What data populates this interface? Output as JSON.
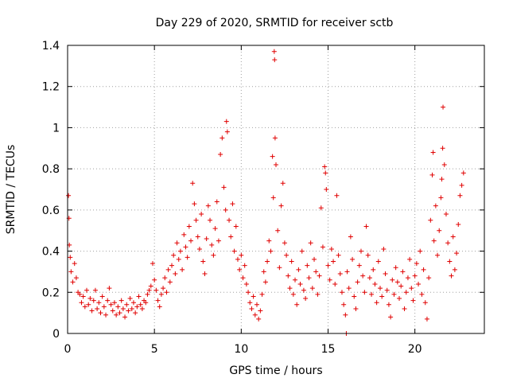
{
  "chart_data": {
    "type": "scatter",
    "title": "Day 229 of 2020, SRMTID for receiver sctb",
    "xlabel": "GPS time / hours",
    "ylabel": "SRMTID / TECUs",
    "xlim": [
      0,
      24
    ],
    "ylim": [
      0,
      1.4
    ],
    "xticks": [
      0,
      5,
      10,
      15,
      20
    ],
    "xtick_labels": [
      "0",
      "5",
      "10",
      "15",
      "20"
    ],
    "yticks": [
      0,
      0.2,
      0.4,
      0.6,
      0.8,
      1,
      1.2,
      1.4
    ],
    "ytick_labels": [
      "0",
      "0.2",
      "0.4",
      "0.6",
      "0.8",
      "1",
      "1.2",
      "1.4"
    ],
    "grid": true,
    "marker": "+",
    "color": "#e00000",
    "series": [
      {
        "name": "SRMTID",
        "points": [
          [
            0.05,
            0.67
          ],
          [
            0.08,
            0.56
          ],
          [
            0.1,
            0.43
          ],
          [
            0.15,
            0.37
          ],
          [
            0.2,
            0.3
          ],
          [
            0.3,
            0.25
          ],
          [
            0.4,
            0.34
          ],
          [
            0.5,
            0.27
          ],
          [
            0.6,
            0.2
          ],
          [
            0.7,
            0.19
          ],
          [
            0.8,
            0.15
          ],
          [
            0.9,
            0.18
          ],
          [
            1.0,
            0.13
          ],
          [
            1.1,
            0.21
          ],
          [
            1.2,
            0.14
          ],
          [
            1.3,
            0.17
          ],
          [
            1.4,
            0.11
          ],
          [
            1.5,
            0.16
          ],
          [
            1.6,
            0.21
          ],
          [
            1.7,
            0.12
          ],
          [
            1.8,
            0.15
          ],
          [
            1.9,
            0.1
          ],
          [
            2.0,
            0.18
          ],
          [
            2.1,
            0.13
          ],
          [
            2.2,
            0.09
          ],
          [
            2.3,
            0.16
          ],
          [
            2.4,
            0.22
          ],
          [
            2.5,
            0.14
          ],
          [
            2.6,
            0.11
          ],
          [
            2.7,
            0.15
          ],
          [
            2.8,
            0.09
          ],
          [
            2.9,
            0.13
          ],
          [
            3.0,
            0.1
          ],
          [
            3.1,
            0.16
          ],
          [
            3.2,
            0.12
          ],
          [
            3.3,
            0.08
          ],
          [
            3.4,
            0.14
          ],
          [
            3.5,
            0.11
          ],
          [
            3.6,
            0.17
          ],
          [
            3.7,
            0.12
          ],
          [
            3.8,
            0.15
          ],
          [
            3.9,
            0.1
          ],
          [
            4.0,
            0.13
          ],
          [
            4.1,
            0.18
          ],
          [
            4.2,
            0.14
          ],
          [
            4.3,
            0.12
          ],
          [
            4.4,
            0.16
          ],
          [
            4.5,
            0.15
          ],
          [
            4.6,
            0.19
          ],
          [
            4.7,
            0.21
          ],
          [
            4.8,
            0.23
          ],
          [
            4.9,
            0.34
          ],
          [
            5.0,
            0.26
          ],
          [
            5.1,
            0.21
          ],
          [
            5.2,
            0.16
          ],
          [
            5.3,
            0.13
          ],
          [
            5.4,
            0.19
          ],
          [
            5.5,
            0.22
          ],
          [
            5.6,
            0.27
          ],
          [
            5.7,
            0.2
          ],
          [
            5.8,
            0.31
          ],
          [
            5.9,
            0.25
          ],
          [
            6.0,
            0.33
          ],
          [
            6.1,
            0.38
          ],
          [
            6.2,
            0.29
          ],
          [
            6.3,
            0.44
          ],
          [
            6.4,
            0.36
          ],
          [
            6.5,
            0.4
          ],
          [
            6.6,
            0.31
          ],
          [
            6.7,
            0.48
          ],
          [
            6.8,
            0.42
          ],
          [
            6.9,
            0.37
          ],
          [
            7.0,
            0.52
          ],
          [
            7.1,
            0.45
          ],
          [
            7.2,
            0.73
          ],
          [
            7.3,
            0.63
          ],
          [
            7.4,
            0.55
          ],
          [
            7.5,
            0.47
          ],
          [
            7.6,
            0.41
          ],
          [
            7.7,
            0.58
          ],
          [
            7.8,
            0.35
          ],
          [
            7.9,
            0.29
          ],
          [
            8.0,
            0.46
          ],
          [
            8.1,
            0.62
          ],
          [
            8.2,
            0.55
          ],
          [
            8.3,
            0.43
          ],
          [
            8.4,
            0.38
          ],
          [
            8.5,
            0.51
          ],
          [
            8.6,
            0.64
          ],
          [
            8.7,
            0.45
          ],
          [
            8.8,
            0.87
          ],
          [
            8.9,
            0.95
          ],
          [
            9.0,
            0.71
          ],
          [
            9.1,
            0.6
          ],
          [
            9.15,
            1.03
          ],
          [
            9.2,
            0.98
          ],
          [
            9.3,
            0.55
          ],
          [
            9.4,
            0.47
          ],
          [
            9.5,
            0.63
          ],
          [
            9.6,
            0.4
          ],
          [
            9.7,
            0.52
          ],
          [
            9.8,
            0.36
          ],
          [
            9.9,
            0.31
          ],
          [
            10.0,
            0.38
          ],
          [
            10.1,
            0.27
          ],
          [
            10.2,
            0.33
          ],
          [
            10.3,
            0.24
          ],
          [
            10.4,
            0.2
          ],
          [
            10.5,
            0.15
          ],
          [
            10.6,
            0.12
          ],
          [
            10.7,
            0.18
          ],
          [
            10.8,
            0.09
          ],
          [
            10.9,
            0.14
          ],
          [
            11.0,
            0.07
          ],
          [
            11.1,
            0.11
          ],
          [
            11.2,
            0.19
          ],
          [
            11.3,
            0.3
          ],
          [
            11.4,
            0.25
          ],
          [
            11.5,
            0.35
          ],
          [
            11.6,
            0.45
          ],
          [
            11.7,
            0.4
          ],
          [
            11.8,
            0.86
          ],
          [
            11.85,
            0.66
          ],
          [
            11.9,
            1.37
          ],
          [
            11.92,
            1.33
          ],
          [
            11.95,
            0.95
          ],
          [
            12.0,
            0.82
          ],
          [
            12.1,
            0.5
          ],
          [
            12.2,
            0.32
          ],
          [
            12.3,
            0.62
          ],
          [
            12.4,
            0.73
          ],
          [
            12.5,
            0.44
          ],
          [
            12.6,
            0.38
          ],
          [
            12.7,
            0.28
          ],
          [
            12.8,
            0.22
          ],
          [
            12.9,
            0.35
          ],
          [
            13.0,
            0.19
          ],
          [
            13.1,
            0.26
          ],
          [
            13.2,
            0.14
          ],
          [
            13.3,
            0.31
          ],
          [
            13.4,
            0.24
          ],
          [
            13.5,
            0.4
          ],
          [
            13.6,
            0.21
          ],
          [
            13.7,
            0.17
          ],
          [
            13.8,
            0.33
          ],
          [
            13.9,
            0.27
          ],
          [
            14.0,
            0.44
          ],
          [
            14.1,
            0.22
          ],
          [
            14.2,
            0.36
          ],
          [
            14.3,
            0.3
          ],
          [
            14.4,
            0.19
          ],
          [
            14.5,
            0.28
          ],
          [
            14.6,
            0.61
          ],
          [
            14.7,
            0.42
          ],
          [
            14.8,
            0.81
          ],
          [
            14.85,
            0.78
          ],
          [
            14.9,
            0.7
          ],
          [
            15.0,
            0.33
          ],
          [
            15.1,
            0.26
          ],
          [
            15.2,
            0.41
          ],
          [
            15.3,
            0.35
          ],
          [
            15.4,
            0.24
          ],
          [
            15.5,
            0.67
          ],
          [
            15.6,
            0.38
          ],
          [
            15.7,
            0.29
          ],
          [
            15.8,
            0.2
          ],
          [
            15.9,
            0.14
          ],
          [
            16.0,
            0.09
          ],
          [
            16.05,
            0.0
          ],
          [
            16.1,
            0.3
          ],
          [
            16.2,
            0.22
          ],
          [
            16.3,
            0.47
          ],
          [
            16.4,
            0.36
          ],
          [
            16.5,
            0.18
          ],
          [
            16.6,
            0.12
          ],
          [
            16.7,
            0.25
          ],
          [
            16.8,
            0.33
          ],
          [
            16.9,
            0.4
          ],
          [
            17.0,
            0.28
          ],
          [
            17.1,
            0.2
          ],
          [
            17.2,
            0.52
          ],
          [
            17.3,
            0.38
          ],
          [
            17.4,
            0.27
          ],
          [
            17.5,
            0.19
          ],
          [
            17.6,
            0.31
          ],
          [
            17.7,
            0.24
          ],
          [
            17.8,
            0.15
          ],
          [
            17.9,
            0.35
          ],
          [
            18.0,
            0.22
          ],
          [
            18.1,
            0.18
          ],
          [
            18.2,
            0.41
          ],
          [
            18.3,
            0.29
          ],
          [
            18.4,
            0.21
          ],
          [
            18.5,
            0.14
          ],
          [
            18.6,
            0.08
          ],
          [
            18.7,
            0.26
          ],
          [
            18.8,
            0.19
          ],
          [
            18.9,
            0.32
          ],
          [
            19.0,
            0.25
          ],
          [
            19.1,
            0.17
          ],
          [
            19.2,
            0.23
          ],
          [
            19.3,
            0.3
          ],
          [
            19.4,
            0.12
          ],
          [
            19.5,
            0.2
          ],
          [
            19.6,
            0.27
          ],
          [
            19.7,
            0.36
          ],
          [
            19.8,
            0.22
          ],
          [
            19.9,
            0.16
          ],
          [
            20.0,
            0.28
          ],
          [
            20.1,
            0.34
          ],
          [
            20.2,
            0.24
          ],
          [
            20.3,
            0.4
          ],
          [
            20.4,
            0.19
          ],
          [
            20.5,
            0.31
          ],
          [
            20.6,
            0.15
          ],
          [
            20.7,
            0.07
          ],
          [
            20.8,
            0.27
          ],
          [
            20.9,
            0.55
          ],
          [
            21.0,
            0.77
          ],
          [
            21.05,
            0.88
          ],
          [
            21.1,
            0.45
          ],
          [
            21.2,
            0.62
          ],
          [
            21.3,
            0.38
          ],
          [
            21.4,
            0.5
          ],
          [
            21.5,
            0.66
          ],
          [
            21.55,
            0.75
          ],
          [
            21.6,
            0.9
          ],
          [
            21.62,
            1.1
          ],
          [
            21.7,
            0.82
          ],
          [
            21.8,
            0.58
          ],
          [
            21.9,
            0.44
          ],
          [
            22.0,
            0.35
          ],
          [
            22.1,
            0.28
          ],
          [
            22.2,
            0.47
          ],
          [
            22.3,
            0.31
          ],
          [
            22.4,
            0.39
          ],
          [
            22.5,
            0.53
          ],
          [
            22.6,
            0.67
          ],
          [
            22.7,
            0.72
          ],
          [
            22.8,
            0.78
          ]
        ]
      }
    ]
  }
}
